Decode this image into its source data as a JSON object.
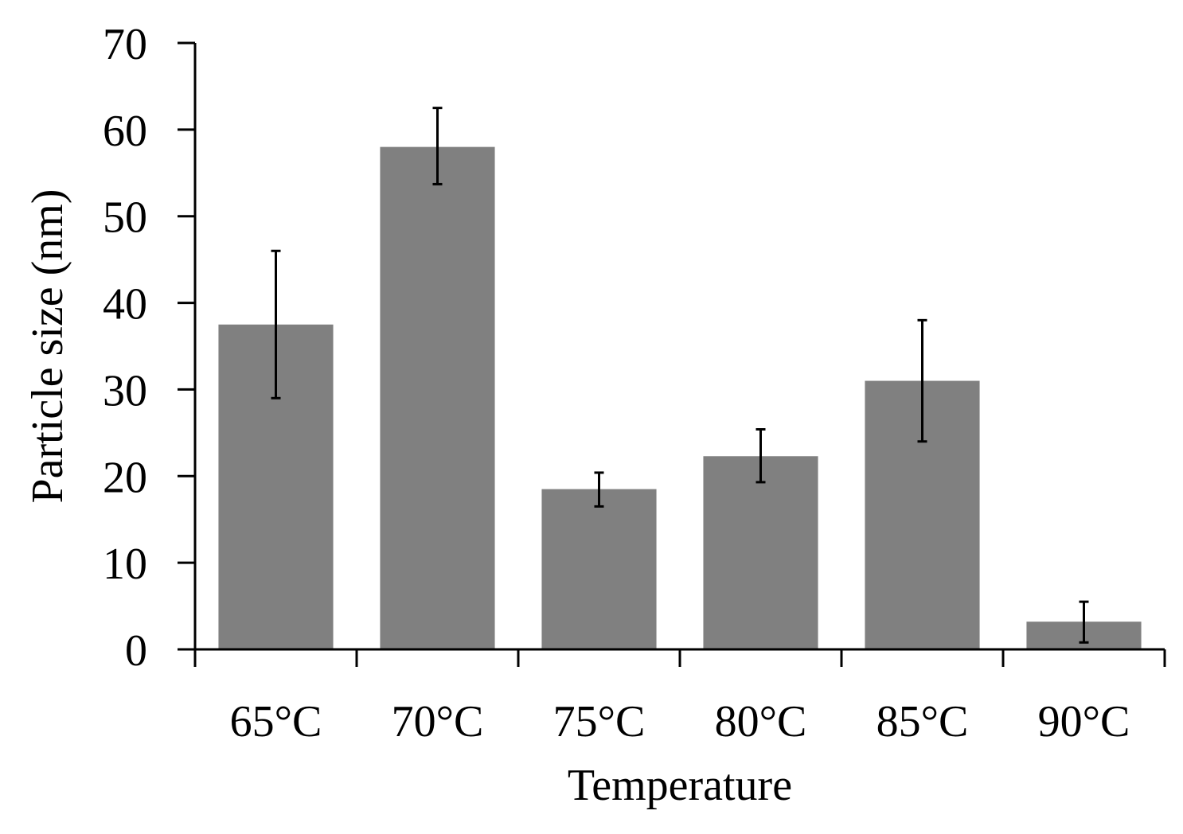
{
  "chart_data": {
    "type": "bar",
    "title": "",
    "xlabel": "Temperature",
    "ylabel": "Particle size (nm)",
    "ylim": [
      0,
      70
    ],
    "yticks": [
      0,
      10,
      20,
      30,
      40,
      50,
      60,
      70
    ],
    "categories": [
      "65°C",
      "70°C",
      "75°C",
      "80°C",
      "85°C",
      "90°C"
    ],
    "series": [
      {
        "name": "Particle size",
        "values": [
          37.5,
          58.0,
          18.5,
          22.3,
          31.0,
          3.2
        ],
        "error_lower": [
          29.0,
          53.7,
          16.5,
          19.3,
          24.0,
          0.8
        ],
        "error_upper": [
          46.0,
          62.5,
          20.4,
          25.4,
          38.0,
          5.5
        ]
      }
    ],
    "bar_color": "#808080",
    "grid": false
  }
}
